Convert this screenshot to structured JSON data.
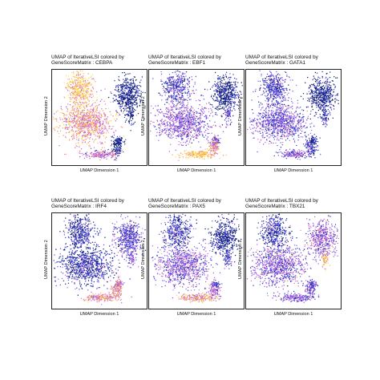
{
  "figure": {
    "panels": [
      {
        "title_line1": "UMAP of IterativeLSI colored by",
        "title_line2": "GeneScoreMatrix : CEBPA",
        "xlabel": "UMAP Dimension 1",
        "ylabel": "UMAP Dimension 2"
      },
      {
        "title_line1": "UMAP of IterativeLSI colored by",
        "title_line2": "GeneScoreMatrix : EBF1",
        "xlabel": "UMAP Dimension 1",
        "ylabel": "UMAP Dimension 2"
      },
      {
        "title_line1": "UMAP of IterativeLSI colored by",
        "title_line2": "GeneScoreMatrix : GATA1",
        "xlabel": "UMAP Dimension 1",
        "ylabel": "UMAP Dimension 2"
      },
      {
        "title_line1": "UMAP of IterativeLSI colored by",
        "title_line2": "GeneScoreMatrix : IRF4",
        "xlabel": "UMAP Dimension 1",
        "ylabel": "UMAP Dimension 2"
      },
      {
        "title_line1": "UMAP of IterativeLSI colored by",
        "title_line2": "GeneScoreMatrix : PAX5",
        "xlabel": "UMAP Dimension 1",
        "ylabel": "UMAP Dimension 2"
      },
      {
        "title_line1": "UMAP of IterativeLSI colored by",
        "title_line2": "GeneScoreMatrix : TBX21",
        "xlabel": "UMAP Dimension 1",
        "ylabel": "UMAP Dimension 2"
      }
    ]
  },
  "chart_data": [
    {
      "type": "scatter",
      "title": "UMAP of IterativeLSI colored by GeneScoreMatrix : CEBPA",
      "xlabel": "UMAP Dimension 1",
      "ylabel": "UMAP Dimension 2",
      "color_scale": [
        "#0b1a5c",
        "#2a3bd8",
        "#8a64ef",
        "#e068d4",
        "#f5a25a",
        "#ffe04a"
      ],
      "high_expression_clusters": [
        "upper-left cluster",
        "lower-left cluster",
        "bottom trail"
      ]
    },
    {
      "type": "scatter",
      "title": "UMAP of IterativeLSI colored by GeneScoreMatrix : EBF1",
      "xlabel": "UMAP Dimension 1",
      "ylabel": "UMAP Dimension 2",
      "color_scale": [
        "#0b1a5c",
        "#2a3bd8",
        "#8a64ef",
        "#e068d4",
        "#f5a25a",
        "#ffe04a"
      ],
      "high_expression_clusters": [
        "bottom trail"
      ]
    },
    {
      "type": "scatter",
      "title": "UMAP of IterativeLSI colored by GeneScoreMatrix : GATA1",
      "xlabel": "UMAP Dimension 1",
      "ylabel": "UMAP Dimension 2",
      "color_scale": [
        "#0b1a5c",
        "#2a3bd8",
        "#8a64ef",
        "#e068d4",
        "#f5a25a",
        "#ffe04a"
      ],
      "high_expression_clusters": []
    },
    {
      "type": "scatter",
      "title": "UMAP of IterativeLSI colored by GeneScoreMatrix : IRF4",
      "xlabel": "UMAP Dimension 1",
      "ylabel": "UMAP Dimension 2",
      "color_scale": [
        "#0b1a5c",
        "#2a3bd8",
        "#8a64ef",
        "#e068d4",
        "#f5a25a",
        "#ffe04a"
      ],
      "high_expression_clusters": [
        "bottom trail"
      ]
    },
    {
      "type": "scatter",
      "title": "UMAP of IterativeLSI colored by GeneScoreMatrix : PAX5",
      "xlabel": "UMAP Dimension 1",
      "ylabel": "UMAP Dimension 2",
      "color_scale": [
        "#0b1a5c",
        "#2a3bd8",
        "#8a64ef",
        "#e068d4",
        "#f5a25a",
        "#ffe04a"
      ],
      "high_expression_clusters": [
        "bottom trail"
      ]
    },
    {
      "type": "scatter",
      "title": "UMAP of IterativeLSI colored by GeneScoreMatrix : TBX21",
      "xlabel": "UMAP Dimension 1",
      "ylabel": "UMAP Dimension 2",
      "color_scale": [
        "#0b1a5c",
        "#2a3bd8",
        "#8a64ef",
        "#e068d4",
        "#f5a25a",
        "#ffe04a"
      ],
      "high_expression_clusters": [
        "right cluster"
      ]
    }
  ]
}
